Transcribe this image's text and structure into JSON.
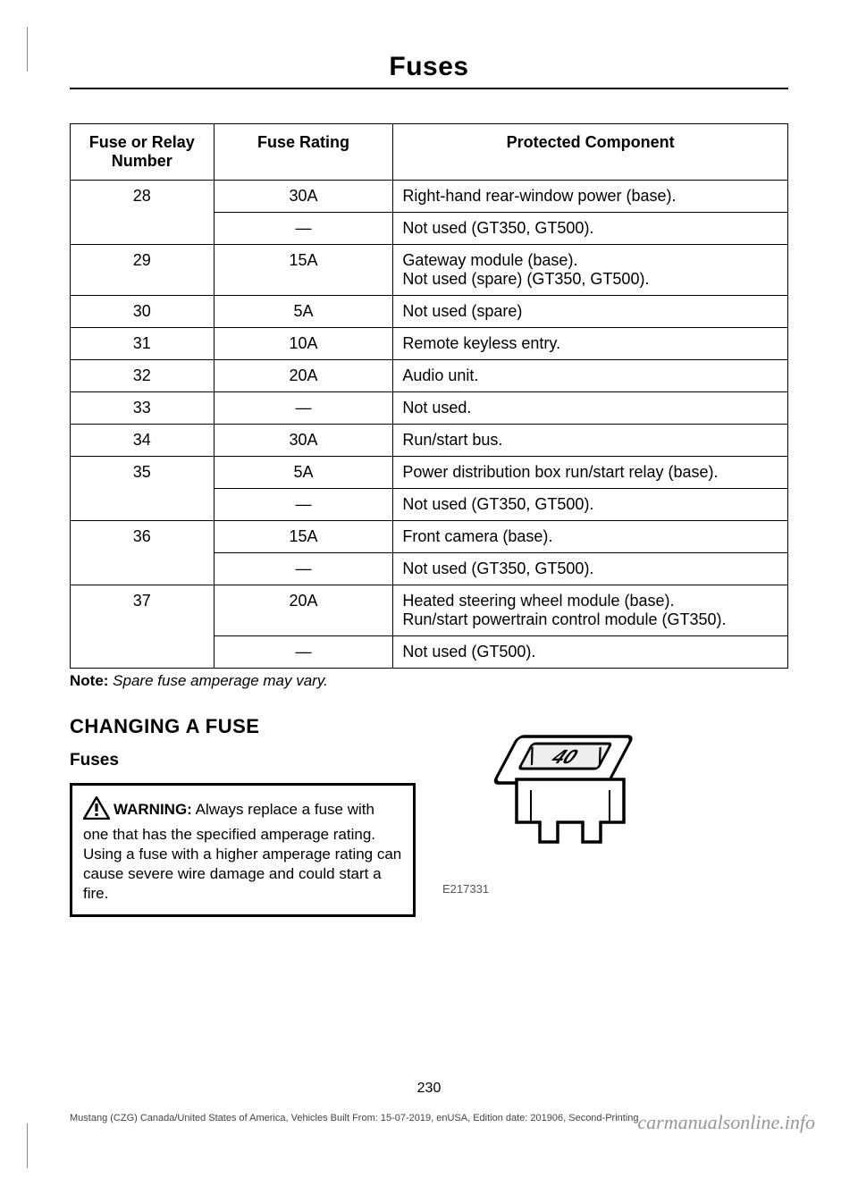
{
  "page_title": "Fuses",
  "page_number": "230",
  "footer_line": "Mustang (CZG) Canada/United States of America, Vehicles Built From: 15-07-2019, enUSA, Edition date: 201906, Second-Printing",
  "watermark": "carmanualsonline.info",
  "table": {
    "headers": [
      "Fuse or Relay Number",
      "Fuse Rating",
      "Protected Component"
    ],
    "rows": [
      {
        "num": "28",
        "numspan": 2,
        "rating": "30A",
        "comp": "Right-hand rear-window power (base)."
      },
      {
        "num": "",
        "rating": "—",
        "comp": "Not used (GT350, GT500)."
      },
      {
        "num": "29",
        "rating": "15A",
        "comp": "Gateway module (base).\nNot used (spare) (GT350, GT500)."
      },
      {
        "num": "30",
        "rating": "5A",
        "comp": "Not used (spare)"
      },
      {
        "num": "31",
        "rating": "10A",
        "comp": "Remote keyless entry."
      },
      {
        "num": "32",
        "rating": "20A",
        "comp": "Audio unit."
      },
      {
        "num": "33",
        "rating": "—",
        "comp": "Not used."
      },
      {
        "num": "34",
        "rating": "30A",
        "comp": "Run/start bus."
      },
      {
        "num": "35",
        "numspan": 2,
        "rating": "5A",
        "comp": "Power distribution box run/start relay (base)."
      },
      {
        "num": "",
        "rating": "—",
        "comp": "Not used (GT350, GT500)."
      },
      {
        "num": "36",
        "numspan": 2,
        "rating": "15A",
        "comp": "Front camera (base)."
      },
      {
        "num": "",
        "rating": "—",
        "comp": "Not used (GT350, GT500)."
      },
      {
        "num": "37",
        "numspan": 2,
        "rating": "20A",
        "comp": "Heated steering wheel module (base).\nRun/start powertrain control module (GT350)."
      },
      {
        "num": "",
        "rating": "—",
        "comp": "Not used (GT500)."
      }
    ]
  },
  "note_label": "Note:",
  "note_text": " Spare fuse amperage may vary.",
  "section_heading": "CHANGING A FUSE",
  "sub_heading": "Fuses",
  "warning_label": "WARNING:",
  "warning_text": " Always replace a fuse with one that has the specified amperage rating. Using a fuse with a higher amperage rating can cause severe wire damage and could start a fire.",
  "figure_id": "E217331",
  "fuse_svg_label": "40",
  "colors": {
    "text": "#000000",
    "rule": "#000000",
    "watermark": "#8c8c8c",
    "footer": "#444444"
  }
}
